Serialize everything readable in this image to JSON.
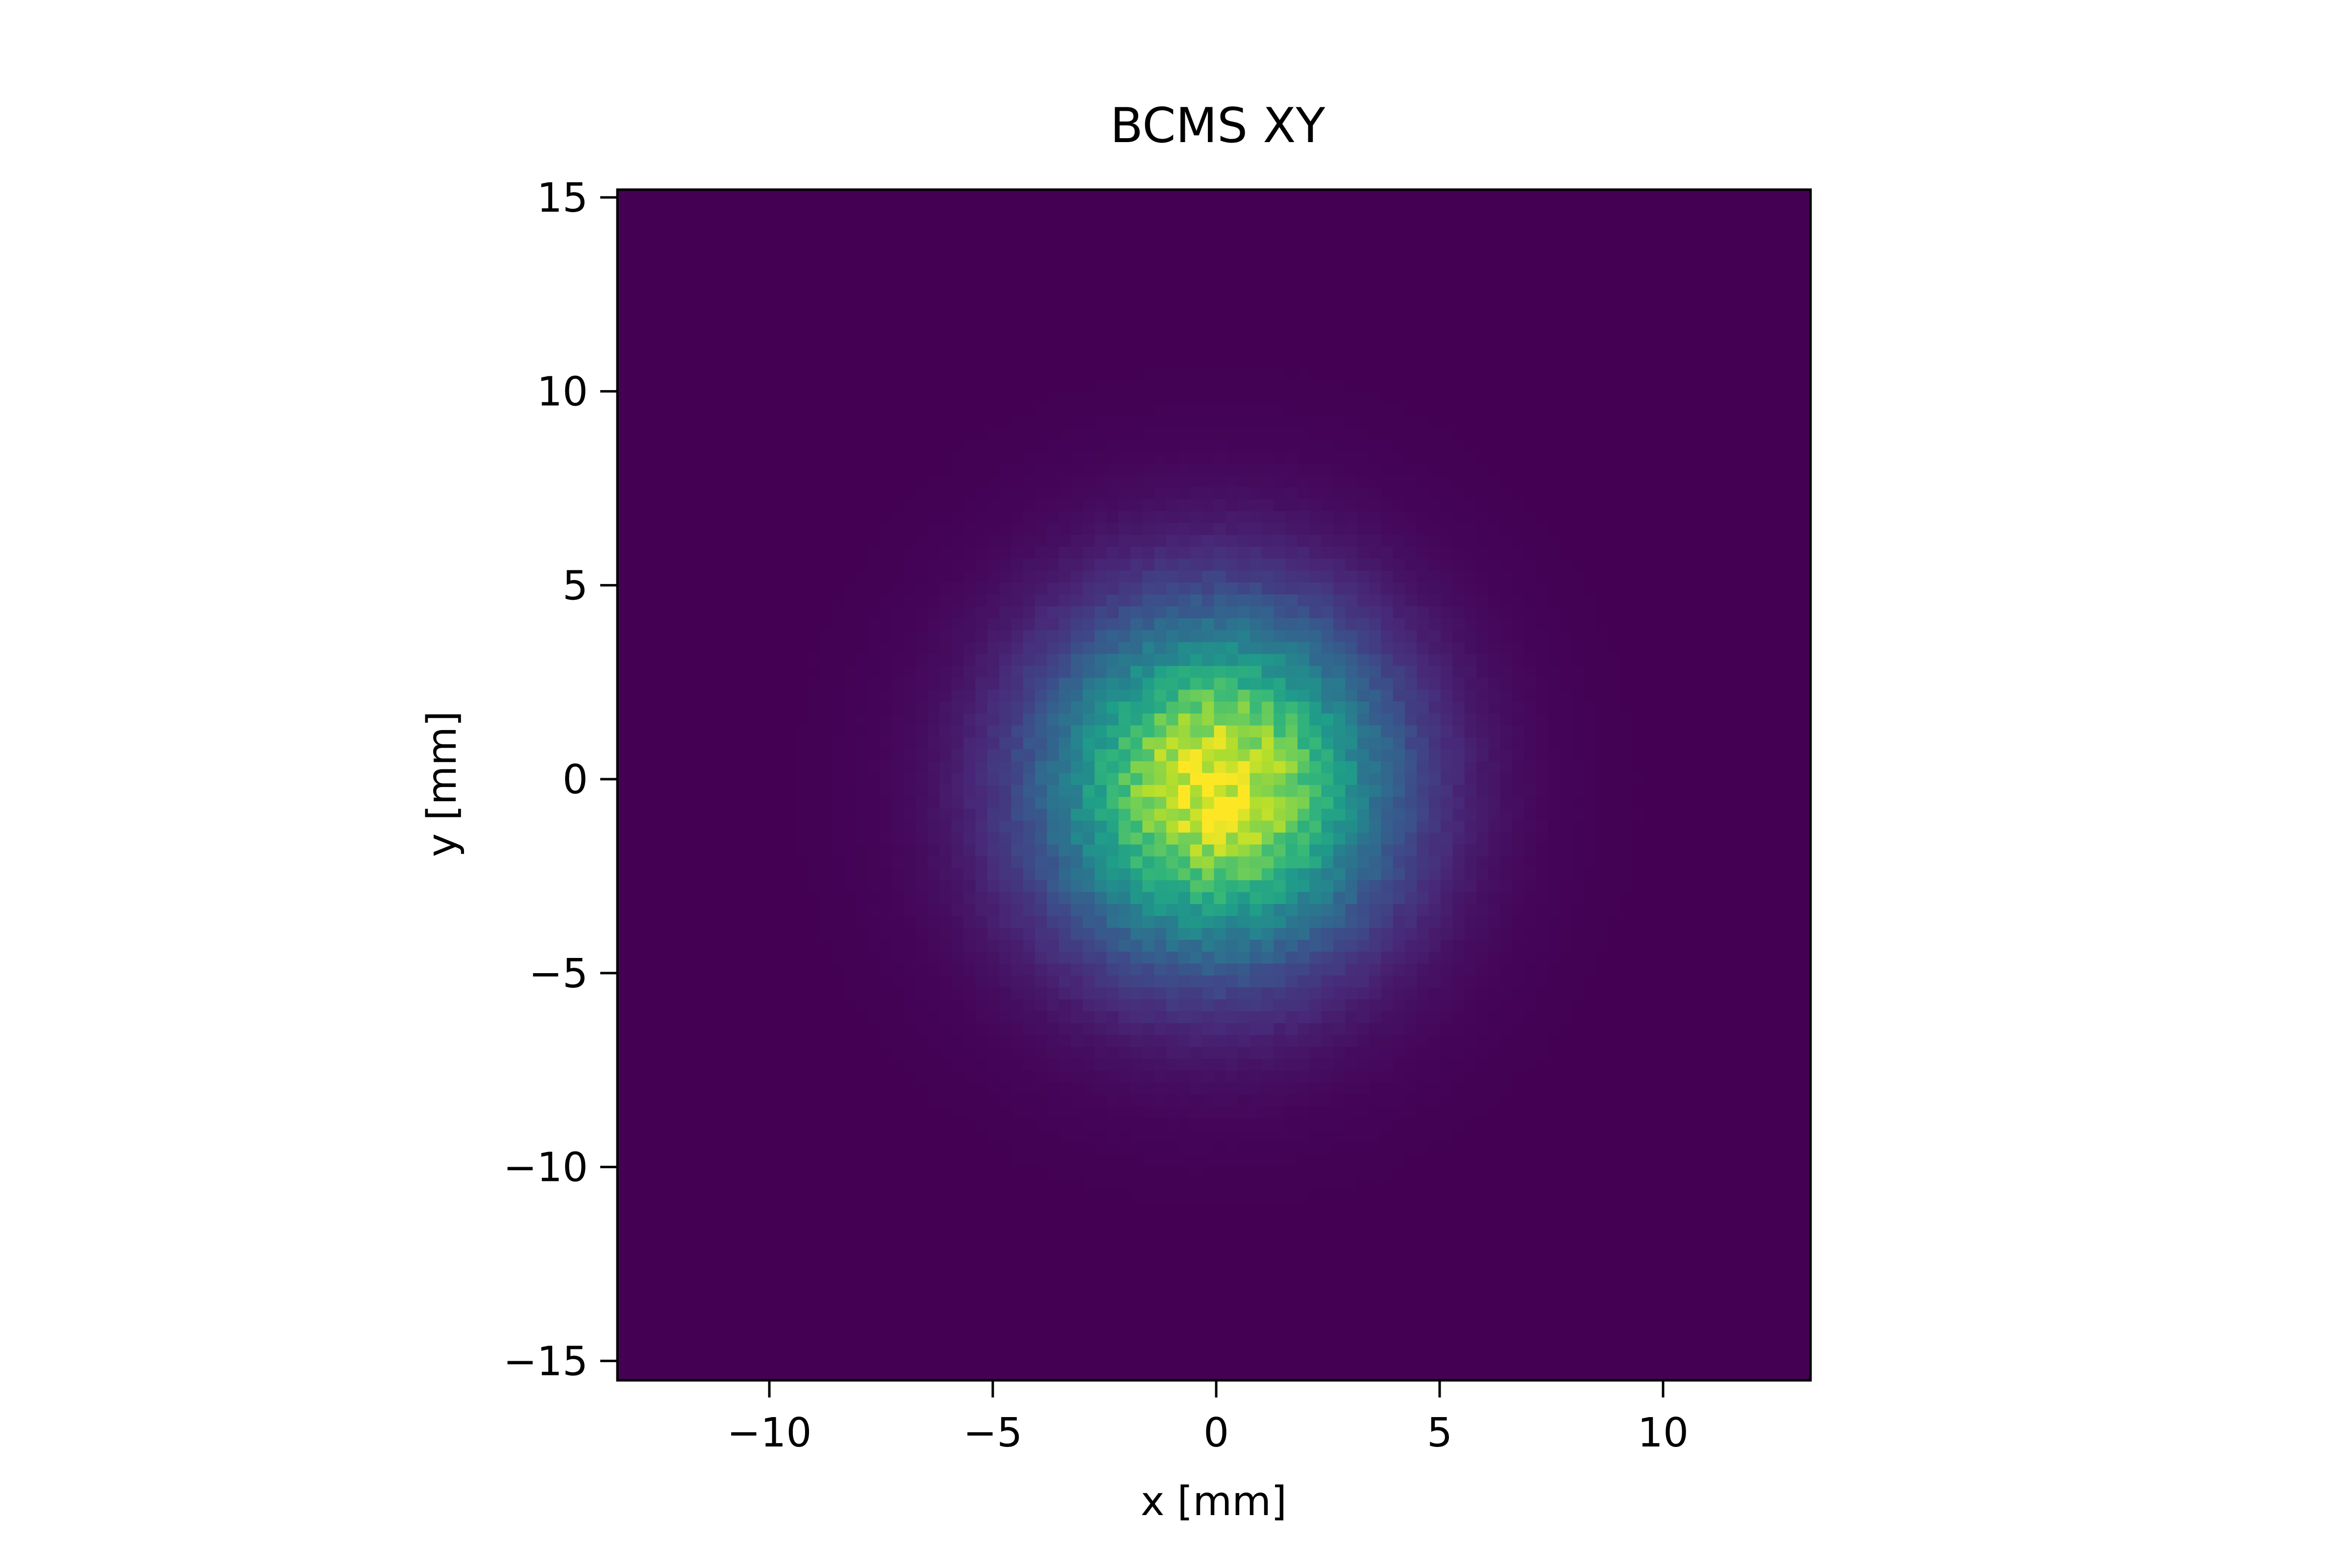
{
  "chart_data": {
    "type": "heatmap",
    "title": "BCMS XY",
    "xlabel": "x [mm]",
    "ylabel": "y [mm]",
    "xlim": [
      -13.4,
      13.3
    ],
    "ylim": [
      -15.5,
      15.2
    ],
    "xticks": [
      -10,
      -5,
      0,
      5,
      10
    ],
    "yticks": [
      -15,
      -10,
      -5,
      0,
      5,
      10,
      15
    ],
    "xtick_labels": [
      "−10",
      "−5",
      "0",
      "5",
      "10"
    ],
    "ytick_labels": [
      "−15",
      "−10",
      "−5",
      "0",
      "5",
      "10",
      "15"
    ],
    "colormap": "viridis",
    "grid": false,
    "distribution": {
      "shape": "2D gaussian",
      "center": [
        0.0,
        -0.2
      ],
      "sigma_x": 2.6,
      "sigma_y": 3.0,
      "bins_x": 100,
      "bins_y": 100,
      "peak_color": "#fde725",
      "background_color": "#440154"
    }
  }
}
